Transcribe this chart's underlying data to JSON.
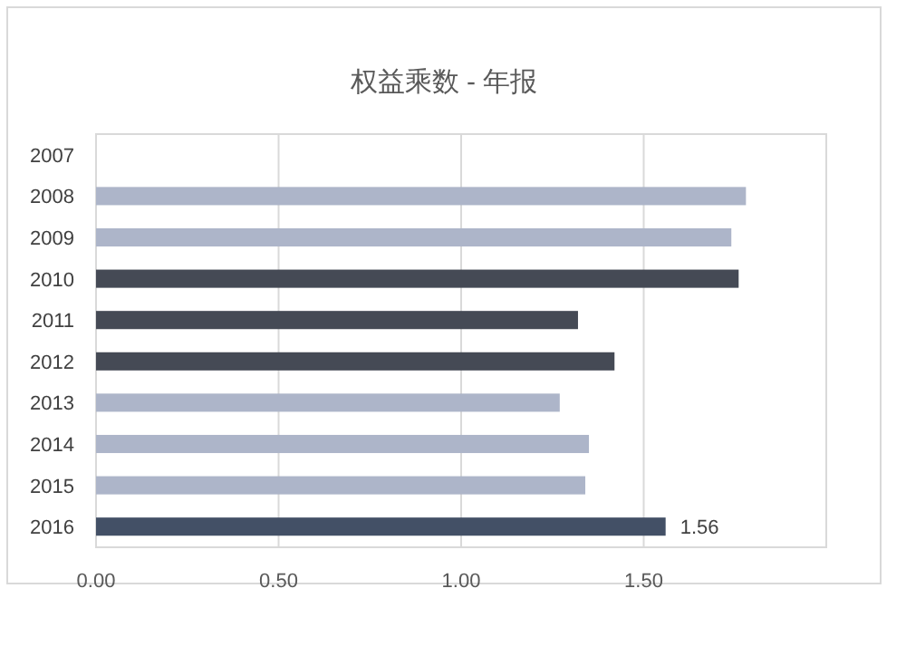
{
  "chart_data": {
    "type": "bar",
    "orientation": "horizontal",
    "title": "权益乘数 - 年报",
    "categories": [
      "2007",
      "2008",
      "2009",
      "2010",
      "2011",
      "2012",
      "2013",
      "2014",
      "2015",
      "2016"
    ],
    "values": [
      null,
      1.78,
      1.74,
      1.76,
      1.32,
      1.42,
      1.27,
      1.35,
      1.34,
      1.56
    ],
    "colors": [
      null,
      "#adb5c9",
      "#adb5c9",
      "#454a55",
      "#454a55",
      "#454a55",
      "#adb5c9",
      "#adb5c9",
      "#adb5c9",
      "#435066"
    ],
    "value_labels": [
      null,
      null,
      null,
      null,
      null,
      null,
      null,
      null,
      null,
      "1.56"
    ],
    "xlim": [
      0,
      2
    ],
    "xticks": [
      {
        "value": 0,
        "label": "0.00"
      },
      {
        "value": 0.5,
        "label": "0.50"
      },
      {
        "value": 1,
        "label": "1.00"
      },
      {
        "value": 1.5,
        "label": "1.50"
      },
      {
        "value": 2,
        "label": null
      }
    ],
    "grid": "x"
  }
}
